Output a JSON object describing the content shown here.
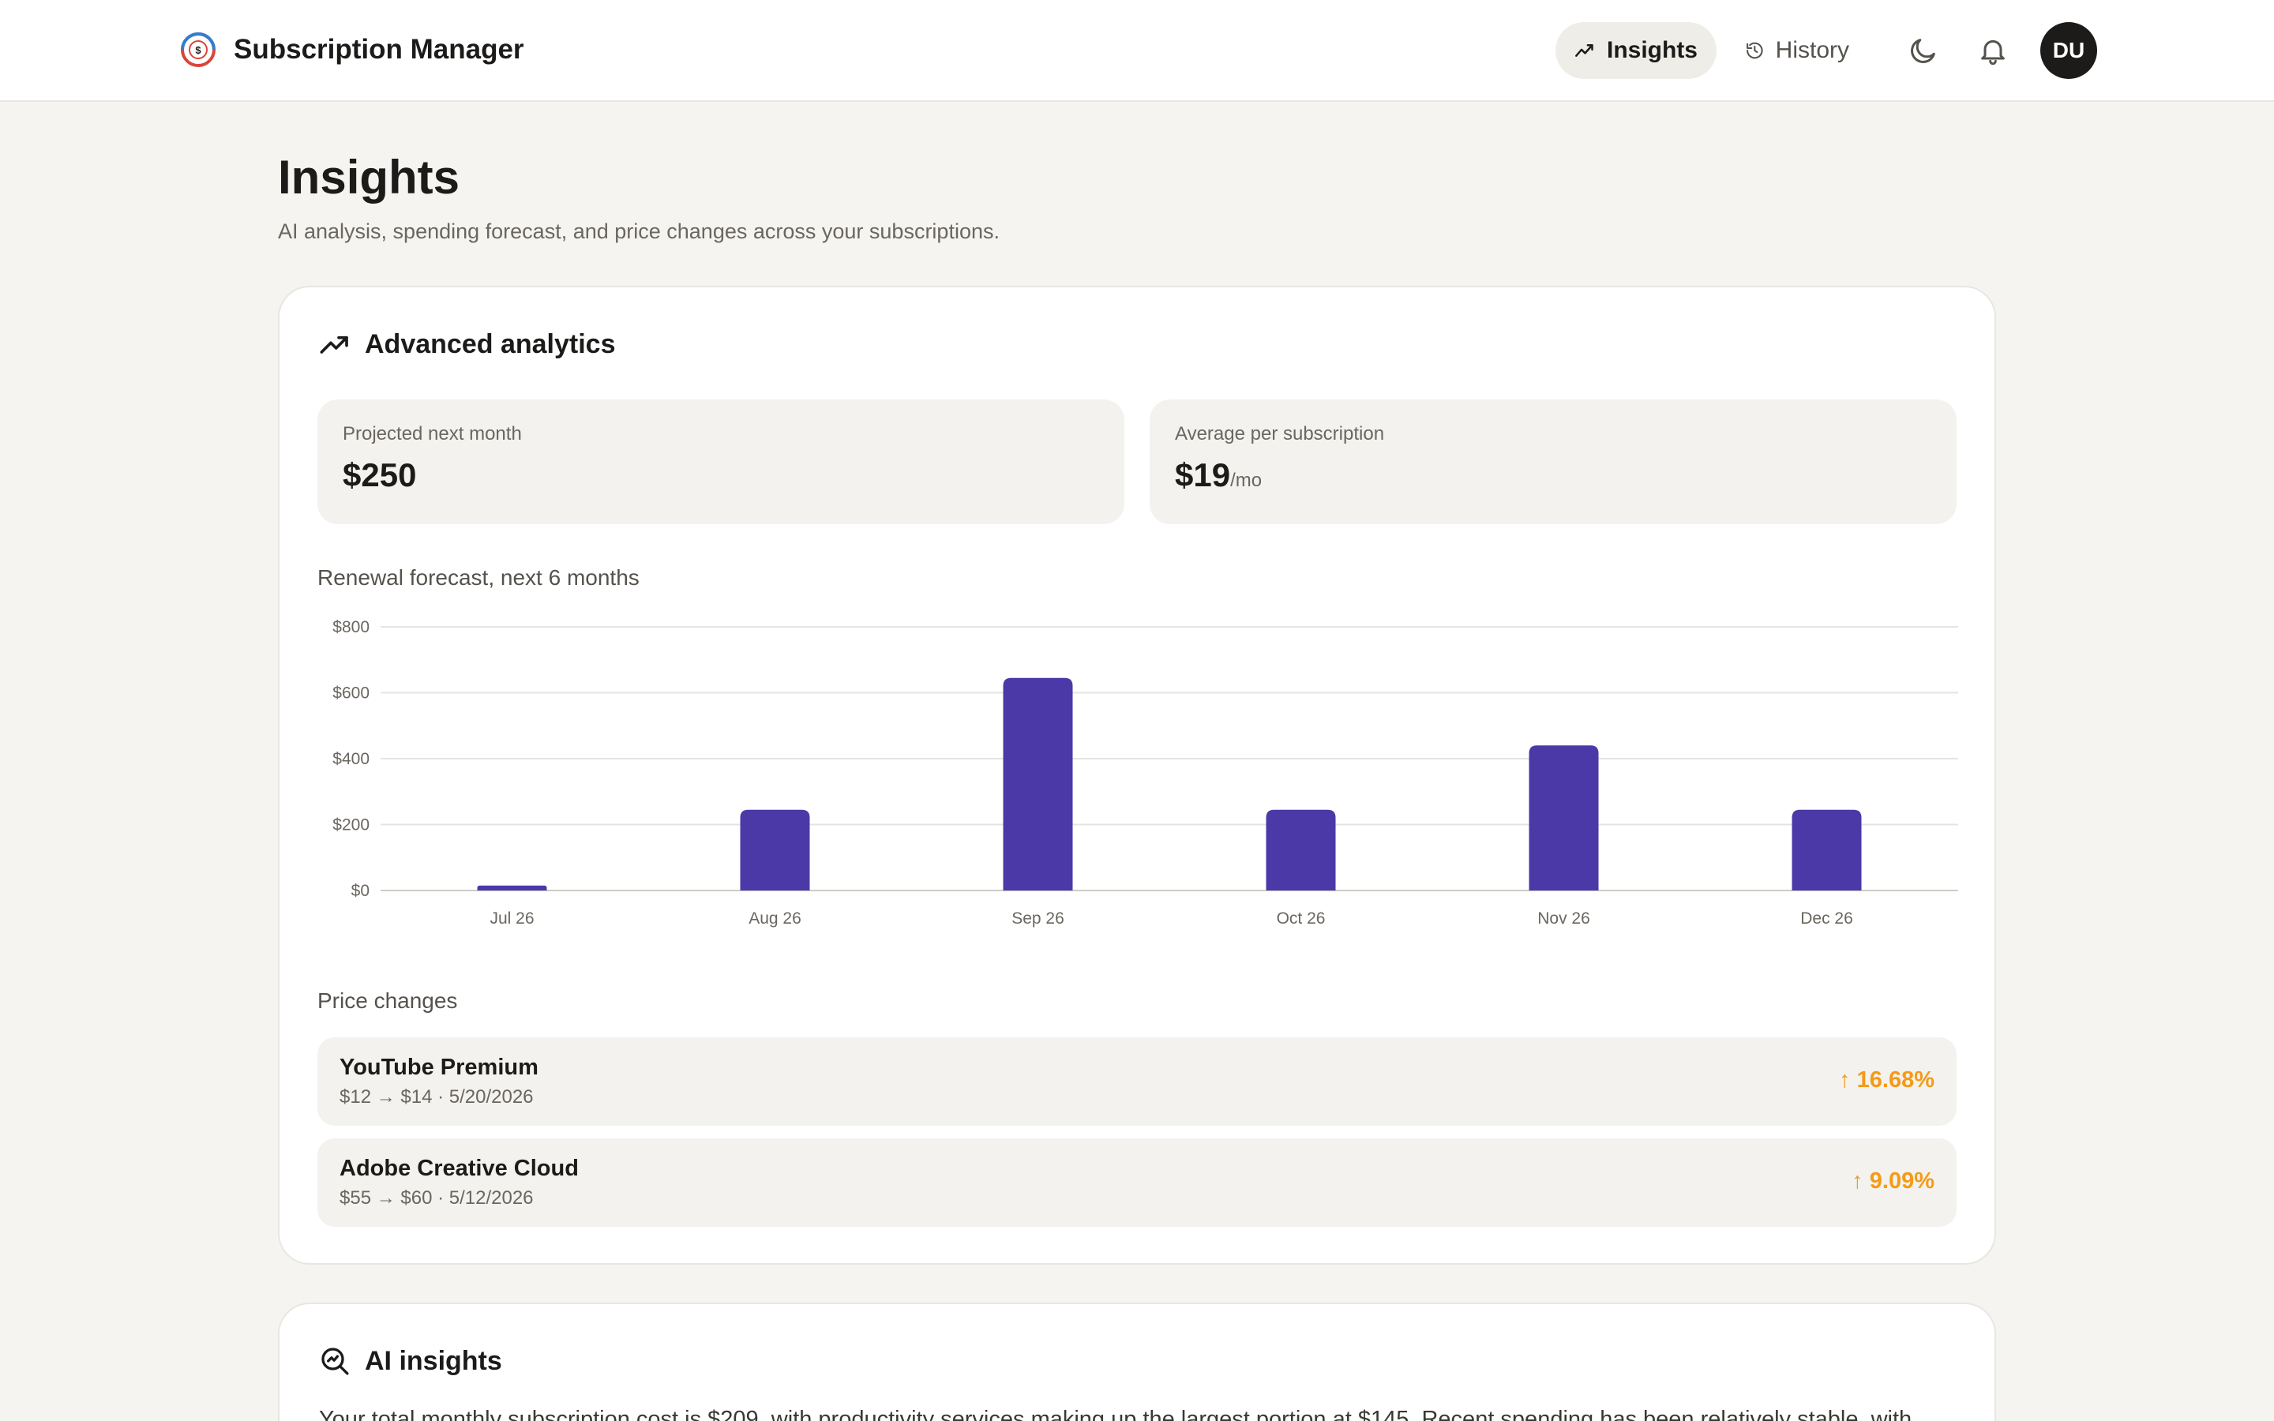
{
  "header": {
    "app_name": "Subscription Manager",
    "nav": [
      {
        "label": "Insights",
        "active": true
      },
      {
        "label": "History",
        "active": false
      }
    ],
    "avatar_initials": "DU",
    "icons": [
      "logo",
      "trend-icon",
      "history-icon",
      "moon-icon",
      "bell-icon"
    ]
  },
  "page": {
    "title": "Insights",
    "subtitle": "AI analysis, spending forecast, and price changes across your subscriptions."
  },
  "analytics": {
    "title": "Advanced analytics",
    "stats": [
      {
        "label": "Projected next month",
        "value": "$250",
        "unit": ""
      },
      {
        "label": "Average per subscription",
        "value": "$19",
        "unit": "/mo"
      }
    ],
    "forecast_label": "Renewal forecast, next 6 months",
    "price_changes_label": "Price changes",
    "price_changes": [
      {
        "name": "YouTube Premium",
        "detail": "$12 → $14 · 5/20/2026",
        "change": "↑ 16.68%"
      },
      {
        "name": "Adobe Creative Cloud",
        "detail": "$55 → $60 · 5/12/2026",
        "change": "↑ 9.09%"
      }
    ]
  },
  "chart_data": {
    "type": "bar",
    "categories": [
      "Jul 26",
      "Aug 26",
      "Sep 26",
      "Oct 26",
      "Nov 26",
      "Dec 26"
    ],
    "values": [
      15,
      245,
      645,
      245,
      440,
      245
    ],
    "ylim": [
      0,
      800
    ],
    "yticks": [
      0,
      200,
      400,
      600,
      800
    ],
    "ytick_labels": [
      "$0",
      "$200",
      "$400",
      "$600",
      "$800"
    ],
    "grid": true,
    "bar_color": "#4b39a8"
  },
  "ai": {
    "title": "AI insights",
    "text": "Your total monthly subscription cost is $209, with productivity services making up the largest portion at $145. Recent spending has been relatively stable, with"
  },
  "colors": {
    "background": "#f5f4f1",
    "card": "#ffffff",
    "accent_bar": "#4b39a8",
    "increase": "#f59a17"
  }
}
